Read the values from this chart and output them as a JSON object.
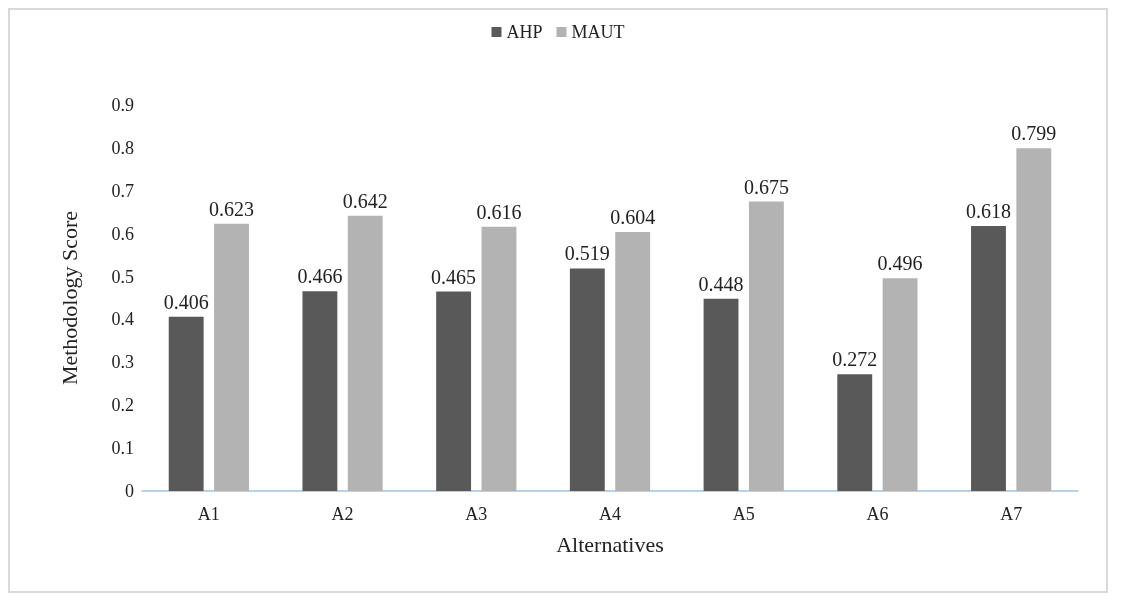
{
  "chart_data": {
    "type": "bar",
    "xlabel": "Alternatives",
    "ylabel": "Methodology Score",
    "categories": [
      "A1",
      "A2",
      "A3",
      "A4",
      "A5",
      "A6",
      "A7"
    ],
    "series": [
      {
        "name": "AHP",
        "color": "#595959",
        "values": [
          0.406,
          0.466,
          0.465,
          0.519,
          0.448,
          0.272,
          0.618
        ]
      },
      {
        "name": "MAUT",
        "color": "#b3b3b3",
        "values": [
          0.623,
          0.642,
          0.616,
          0.604,
          0.675,
          0.496,
          0.799
        ]
      }
    ],
    "ylim": [
      0,
      0.9
    ],
    "yticks": [
      0,
      0.1,
      0.2,
      0.3,
      0.4,
      0.5,
      0.6,
      0.7,
      0.8,
      0.9
    ],
    "grid": false,
    "legend": "top",
    "data_labels": true
  }
}
